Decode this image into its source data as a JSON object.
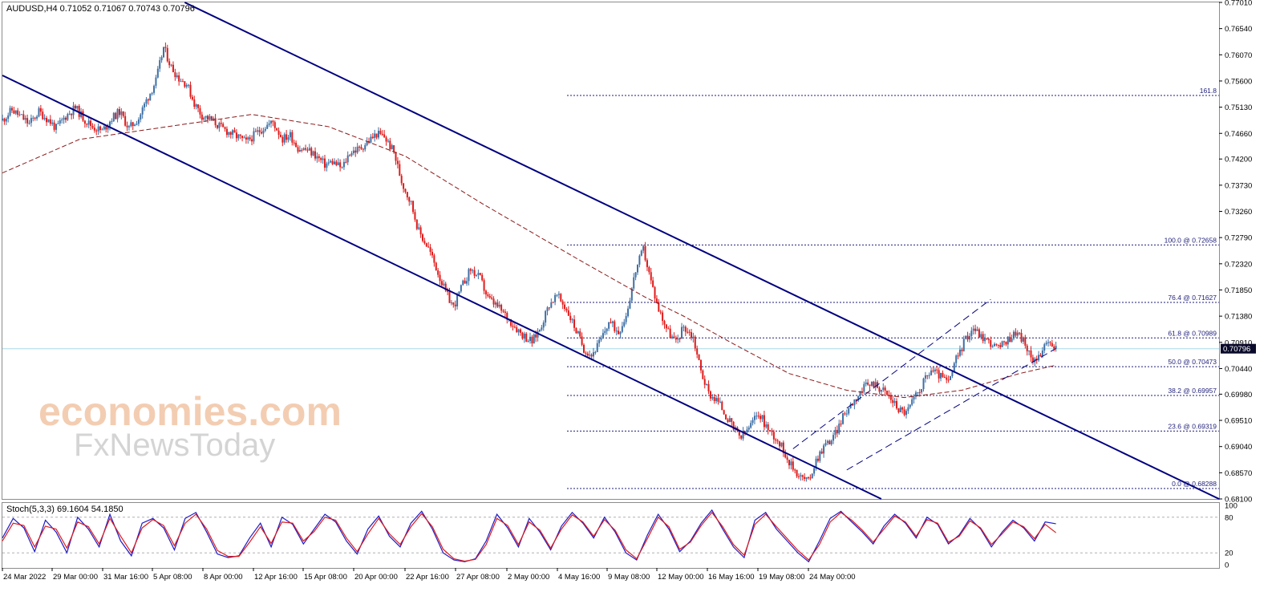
{
  "header": {
    "symbol_line": "AUDUSD,H4  0.71052 0.71067 0.70743 0.70796"
  },
  "watermark": {
    "line1": "economies.com",
    "line2": "FxNewsToday"
  },
  "colors": {
    "background": "#ffffff",
    "bull_candle": "#3d6fa5",
    "bear_candle": "#e01a1a",
    "moving_average": "#8b1a1a",
    "channel": "#000080",
    "fib": "#1e1e7a",
    "bid_line": "#a8d8e8",
    "price_tag_bg": "#0a0a2a",
    "stoch_main": "#1c1cc8",
    "stoch_signal": "#e01a1a",
    "watermark": "#f2c5a5"
  },
  "chart_data": [
    {
      "type": "candlestick",
      "symbol": "AUDUSD",
      "timeframe": "H4",
      "ohlc_header": {
        "open": 0.71052,
        "high": 0.71067,
        "low": 0.70743,
        "close": 0.70796
      },
      "ylim": [
        0.681,
        0.7701
      ],
      "y_ticks": [
        "0.77010",
        "0.76540",
        "0.76070",
        "0.75600",
        "0.75130",
        "0.74660",
        "0.74200",
        "0.73730",
        "0.73260",
        "0.72790",
        "0.72320",
        "0.71850",
        "0.71380",
        "0.70910",
        "0.70440",
        "0.69980",
        "0.69510",
        "0.69040",
        "0.68570",
        "0.68100"
      ],
      "x_ticks": [
        "24 Mar 2022",
        "29 Mar 00:00",
        "31 Mar 16:00",
        "5 Apr 08:00",
        "8 Apr 00:00",
        "12 Apr 16:00",
        "15 Apr 08:00",
        "20 Apr 00:00",
        "22 Apr 16:00",
        "27 Apr 08:00",
        "2 May 00:00",
        "4 May 16:00",
        "9 May 08:00",
        "12 May 00:00",
        "16 May 16:00",
        "19 May 08:00",
        "24 May 00:00"
      ],
      "current_price": "0.70796",
      "price_path": [
        [
          0,
          0.749
        ],
        [
          5,
          0.7508
        ],
        [
          10,
          0.7495
        ],
        [
          14,
          0.7483
        ],
        [
          19,
          0.7505
        ],
        [
          24,
          0.749
        ],
        [
          28,
          0.7475
        ],
        [
          33,
          0.7497
        ],
        [
          38,
          0.7512
        ],
        [
          43,
          0.749
        ],
        [
          47,
          0.7478
        ],
        [
          52,
          0.747
        ],
        [
          57,
          0.7493
        ],
        [
          61,
          0.7505
        ],
        [
          66,
          0.7475
        ],
        [
          71,
          0.7493
        ],
        [
          75,
          0.7525
        ],
        [
          80,
          0.756
        ],
        [
          84,
          0.762
        ],
        [
          88,
          0.7585
        ],
        [
          92,
          0.7565
        ],
        [
          96,
          0.7555
        ],
        [
          100,
          0.752
        ],
        [
          104,
          0.7498
        ],
        [
          109,
          0.749
        ],
        [
          114,
          0.7476
        ],
        [
          118,
          0.7468
        ],
        [
          123,
          0.7459
        ],
        [
          127,
          0.745
        ],
        [
          132,
          0.7465
        ],
        [
          137,
          0.7479
        ],
        [
          141,
          0.7486
        ],
        [
          146,
          0.7456
        ],
        [
          150,
          0.7463
        ],
        [
          154,
          0.744
        ],
        [
          159,
          0.7436
        ],
        [
          163,
          0.7427
        ],
        [
          168,
          0.741
        ],
        [
          172,
          0.7415
        ],
        [
          177,
          0.7403
        ],
        [
          181,
          0.7432
        ],
        [
          186,
          0.7438
        ],
        [
          190,
          0.745
        ],
        [
          195,
          0.7465
        ],
        [
          199,
          0.746
        ],
        [
          204,
          0.7432
        ],
        [
          208,
          0.738
        ],
        [
          213,
          0.734
        ],
        [
          217,
          0.729
        ],
        [
          222,
          0.726
        ],
        [
          226,
          0.7225
        ],
        [
          231,
          0.718
        ],
        [
          235,
          0.7155
        ],
        [
          240,
          0.7195
        ],
        [
          244,
          0.7222
        ],
        [
          249,
          0.7205
        ],
        [
          253,
          0.717
        ],
        [
          258,
          0.7155
        ],
        [
          262,
          0.714
        ],
        [
          267,
          0.712
        ],
        [
          271,
          0.7105
        ],
        [
          276,
          0.7092
        ],
        [
          280,
          0.7115
        ],
        [
          285,
          0.716
        ],
        [
          289,
          0.7175
        ],
        [
          294,
          0.715
        ],
        [
          298,
          0.712
        ],
        [
          303,
          0.708
        ],
        [
          307,
          0.7068
        ],
        [
          312,
          0.7095
        ],
        [
          316,
          0.7128
        ],
        [
          321,
          0.711
        ],
        [
          325,
          0.714
        ],
        [
          330,
          0.722
        ],
        [
          334,
          0.7258
        ],
        [
          338,
          0.72
        ],
        [
          342,
          0.715
        ],
        [
          347,
          0.711
        ],
        [
          351,
          0.709
        ],
        [
          355,
          0.712
        ],
        [
          360,
          0.71
        ],
        [
          364,
          0.704
        ],
        [
          368,
          0.7
        ],
        [
          373,
          0.6985
        ],
        [
          377,
          0.696
        ],
        [
          381,
          0.6935
        ],
        [
          385,
          0.692
        ],
        [
          390,
          0.6942
        ],
        [
          394,
          0.6965
        ],
        [
          399,
          0.6935
        ],
        [
          403,
          0.692
        ],
        [
          407,
          0.6898
        ],
        [
          411,
          0.687
        ],
        [
          416,
          0.685
        ],
        [
          420,
          0.6842
        ],
        [
          424,
          0.688
        ],
        [
          428,
          0.6905
        ],
        [
          433,
          0.692
        ],
        [
          437,
          0.695
        ],
        [
          441,
          0.6975
        ],
        [
          446,
          0.6998
        ],
        [
          450,
          0.7012
        ],
        [
          454,
          0.7018
        ],
        [
          459,
          0.7005
        ],
        [
          463,
          0.699
        ],
        [
          467,
          0.6972
        ],
        [
          471,
          0.6965
        ],
        [
          476,
          0.6995
        ],
        [
          480,
          0.702
        ],
        [
          484,
          0.7042
        ],
        [
          489,
          0.703
        ],
        [
          493,
          0.7018
        ],
        [
          497,
          0.706
        ],
        [
          502,
          0.7098
        ],
        [
          506,
          0.7118
        ],
        [
          510,
          0.7102
        ],
        [
          515,
          0.709
        ],
        [
          519,
          0.708
        ],
        [
          523,
          0.7092
        ],
        [
          528,
          0.711
        ],
        [
          532,
          0.7095
        ],
        [
          536,
          0.706
        ],
        [
          541,
          0.707
        ],
        [
          545,
          0.709
        ],
        [
          549,
          0.708
        ]
      ],
      "moving_average_path": [
        [
          0,
          0.7395
        ],
        [
          40,
          0.7455
        ],
        [
          90,
          0.748
        ],
        [
          130,
          0.75
        ],
        [
          170,
          0.7478
        ],
        [
          210,
          0.7425
        ],
        [
          250,
          0.734
        ],
        [
          300,
          0.724
        ],
        [
          335,
          0.7172
        ],
        [
          355,
          0.7138
        ],
        [
          380,
          0.709
        ],
        [
          410,
          0.7035
        ],
        [
          440,
          0.7005
        ],
        [
          470,
          0.6992
        ],
        [
          500,
          0.7005
        ],
        [
          530,
          0.7035
        ],
        [
          549,
          0.705
        ]
      ],
      "channel_lines": [
        {
          "name": "upper",
          "from": [
            95,
            0.7701
          ],
          "to": [
            634,
            0.681
          ]
        },
        {
          "name": "lower",
          "from": [
            0,
            0.757
          ],
          "to": [
            458,
            0.681
          ]
        }
      ],
      "minor_channel_lines": [
        {
          "from": [
            412,
            0.69
          ],
          "to": [
            515,
            0.7168
          ]
        },
        {
          "from": [
            440,
            0.6862
          ],
          "to": [
            549,
            0.708
          ]
        }
      ],
      "fib_levels": [
        {
          "label": "161.8",
          "value": 0.7534
        },
        {
          "label": "100.0 @ 0.72658",
          "value": 0.72658
        },
        {
          "label": "76.4 @ 0.71627",
          "value": 0.71627
        },
        {
          "label": "61.8 @ 0.70989",
          "value": 0.70989
        },
        {
          "label": "50.0 @ 0.70473",
          "value": 0.70473
        },
        {
          "label": "38.2 @ 0.69957",
          "value": 0.69957
        },
        {
          "label": "23.6 @ 0.69319",
          "value": 0.69319
        },
        {
          "label": "0.0 @ 0.68288",
          "value": 0.68288
        }
      ]
    },
    {
      "type": "line",
      "title": "Stoch(5,3,3) 69.1604 54.1850",
      "ylim": [
        0,
        100
      ],
      "y_ticks": [
        "100",
        "80",
        "20",
        "0"
      ],
      "levels": [
        80,
        20
      ],
      "series": [
        {
          "name": "main",
          "values": [
            45,
            78,
            62,
            22,
            75,
            55,
            20,
            80,
            60,
            30,
            85,
            40,
            15,
            70,
            78,
            62,
            25,
            78,
            88,
            55,
            18,
            12,
            15,
            45,
            70,
            30,
            80,
            68,
            35,
            60,
            85,
            72,
            40,
            18,
            60,
            82,
            48,
            30,
            70,
            90,
            60,
            20,
            8,
            5,
            10,
            40,
            85,
            62,
            30,
            78,
            55,
            25,
            65,
            88,
            70,
            45,
            80,
            55,
            20,
            8,
            50,
            85,
            60,
            22,
            40,
            70,
            92,
            60,
            30,
            12,
            75,
            88,
            60,
            40,
            20,
            5,
            40,
            78,
            90,
            72,
            55,
            35,
            65,
            85,
            70,
            45,
            80,
            68,
            35,
            50,
            78,
            60,
            30,
            55,
            75,
            62,
            40,
            72,
            69
          ]
        },
        {
          "name": "signal",
          "values": [
            40,
            70,
            66,
            30,
            65,
            60,
            28,
            72,
            64,
            35,
            78,
            48,
            20,
            62,
            76,
            66,
            32,
            70,
            85,
            60,
            24,
            14,
            14,
            38,
            64,
            36,
            72,
            70,
            40,
            56,
            80,
            75,
            45,
            22,
            52,
            78,
            52,
            34,
            64,
            86,
            64,
            26,
            10,
            6,
            9,
            34,
            78,
            66,
            34,
            72,
            58,
            28,
            60,
            84,
            72,
            48,
            76,
            58,
            25,
            10,
            44,
            80,
            64,
            26,
            38,
            66,
            88,
            64,
            34,
            16,
            68,
            85,
            64,
            44,
            24,
            8,
            34,
            72,
            88,
            75,
            58,
            38,
            60,
            82,
            72,
            48,
            76,
            70,
            38,
            48,
            74,
            62,
            34,
            52,
            72,
            64,
            44,
            68,
            54
          ]
        }
      ]
    }
  ]
}
